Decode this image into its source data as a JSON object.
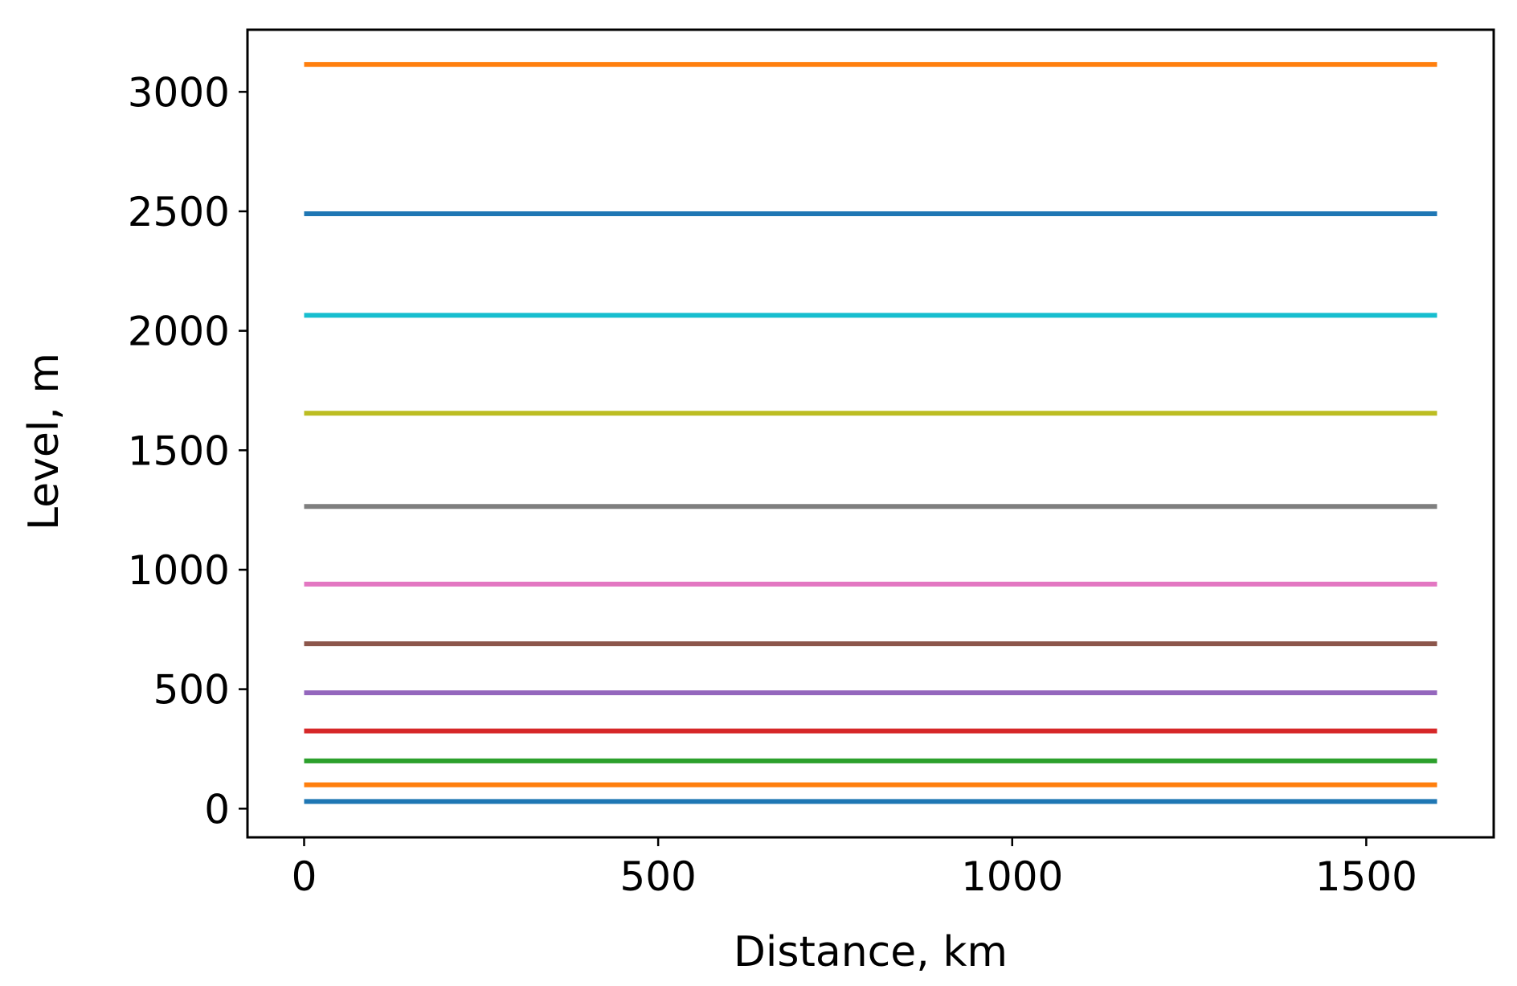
{
  "chart_data": {
    "type": "line",
    "title": "",
    "xlabel": "Distance, km",
    "ylabel": "Level, m",
    "xlim": [
      -80,
      1680
    ],
    "ylim": [
      -120,
      3260
    ],
    "xticks": [
      0,
      500,
      1000,
      1500
    ],
    "yticks": [
      0,
      500,
      1000,
      1500,
      2000,
      2500,
      3000
    ],
    "grid": false,
    "legend": false,
    "x": [
      0,
      1600
    ],
    "series": [
      {
        "color": "#1f77b4",
        "values": [
          30,
          30
        ]
      },
      {
        "color": "#ff7f0e",
        "values": [
          100,
          100
        ]
      },
      {
        "color": "#2ca02c",
        "values": [
          200,
          200
        ]
      },
      {
        "color": "#d62728",
        "values": [
          325,
          325
        ]
      },
      {
        "color": "#9467bd",
        "values": [
          485,
          485
        ]
      },
      {
        "color": "#8c564b",
        "values": [
          690,
          690
        ]
      },
      {
        "color": "#e377c2",
        "values": [
          940,
          940
        ]
      },
      {
        "color": "#7f7f7f",
        "values": [
          1265,
          1265
        ]
      },
      {
        "color": "#bcbd22",
        "values": [
          1655,
          1655
        ]
      },
      {
        "color": "#17becf",
        "values": [
          2065,
          2065
        ]
      },
      {
        "color": "#1f77b4",
        "values": [
          2490,
          2490
        ]
      },
      {
        "color": "#ff7f0e",
        "values": [
          3115,
          3115
        ]
      }
    ]
  }
}
